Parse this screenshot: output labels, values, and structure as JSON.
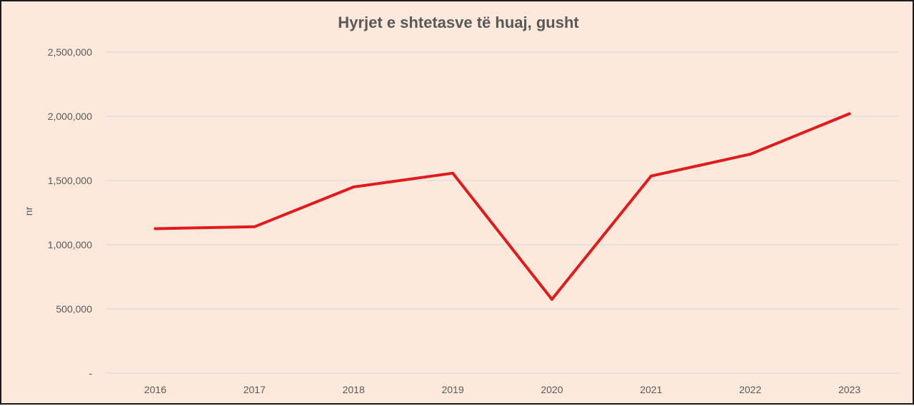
{
  "chart_data": {
    "type": "line",
    "title": "Hyrjet e shtetasve të huaj, gusht",
    "xlabel": "",
    "ylabel": "nr",
    "categories": [
      "2016",
      "2017",
      "2018",
      "2019",
      "2020",
      "2021",
      "2022",
      "2023"
    ],
    "series": [
      {
        "values": [
          1125000,
          1140000,
          1450000,
          1557000,
          575000,
          1535000,
          1705000,
          2020000
        ],
        "color": "#e31a1c"
      }
    ],
    "ylim": [
      0,
      2500000
    ],
    "yticks": [
      {
        "value": 0,
        "label": "-"
      },
      {
        "value": 500000,
        "label": "500,000"
      },
      {
        "value": 1000000,
        "label": "1,000,000"
      },
      {
        "value": 1500000,
        "label": "1,500,000"
      },
      {
        "value": 2000000,
        "label": "2,000,000"
      },
      {
        "value": 2500000,
        "label": "2,500,000"
      }
    ],
    "grid": true,
    "legend": "none",
    "colors": {
      "background": "#fce9dc",
      "grid": "#d3d6db",
      "line": "#e31a1c",
      "text": "#595959"
    }
  }
}
